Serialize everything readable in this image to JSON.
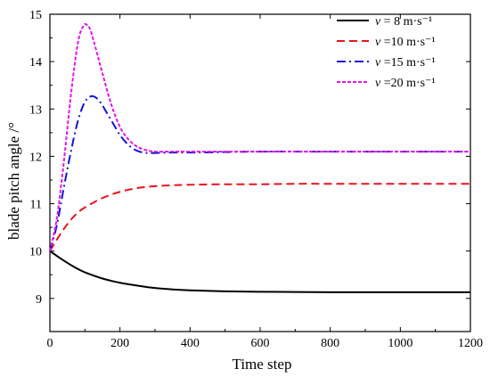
{
  "chart_data": {
    "type": "line",
    "title": "",
    "xlabel": "Time step",
    "ylabel": "blade pitch angle /°",
    "xlim": [
      0,
      1200
    ],
    "ylim": [
      8.3,
      15
    ],
    "xticks": [
      0,
      200,
      400,
      600,
      800,
      1000,
      1200
    ],
    "yticks": [
      9,
      10,
      11,
      12,
      13,
      14,
      15
    ],
    "grid": false,
    "legend_position": "top-right",
    "series": [
      {
        "name": "v = 8 m·s⁻¹",
        "legend_var": "v",
        "legend_rest": " = 8 m·s⁻¹",
        "color": "#000000",
        "dash": "solid",
        "x": [
          0,
          25,
          50,
          75,
          100,
          150,
          200,
          250,
          300,
          350,
          400,
          500,
          600,
          700,
          800,
          900,
          1000,
          1100,
          1200
        ],
        "y": [
          10.0,
          9.87,
          9.75,
          9.64,
          9.55,
          9.42,
          9.33,
          9.27,
          9.22,
          9.19,
          9.17,
          9.15,
          9.14,
          9.135,
          9.13,
          9.13,
          9.13,
          9.13,
          9.13
        ]
      },
      {
        "name": "v =10 m·s⁻¹",
        "legend_var": "v",
        "legend_rest": " =10 m·s⁻¹",
        "color": "#e8141e",
        "dash": "long-dash",
        "x": [
          0,
          25,
          50,
          75,
          100,
          150,
          200,
          250,
          300,
          350,
          400,
          500,
          600,
          700,
          800,
          900,
          1000,
          1100,
          1200
        ],
        "y": [
          10.0,
          10.3,
          10.57,
          10.78,
          10.92,
          11.12,
          11.25,
          11.33,
          11.37,
          11.39,
          11.4,
          11.41,
          11.41,
          11.42,
          11.42,
          11.42,
          11.42,
          11.42,
          11.42
        ]
      },
      {
        "name": "v =15 m·s⁻¹",
        "legend_var": "v",
        "legend_rest": " =15 m·s⁻¹",
        "color": "#1414d2",
        "dash": "dash-dot",
        "x": [
          0,
          20,
          40,
          60,
          80,
          100,
          120,
          140,
          160,
          180,
          200,
          220,
          240,
          260,
          280,
          300,
          350,
          400,
          500,
          600,
          800,
          1000,
          1200
        ],
        "y": [
          10.0,
          10.55,
          11.35,
          12.1,
          12.75,
          13.15,
          13.27,
          13.18,
          12.95,
          12.7,
          12.45,
          12.27,
          12.15,
          12.09,
          12.07,
          12.07,
          12.08,
          12.08,
          12.09,
          12.1,
          12.1,
          12.1,
          12.1
        ]
      },
      {
        "name": "v =20 m·s⁻¹",
        "legend_var": "v",
        "legend_rest": " =20 m·s⁻¹",
        "color": "#e414e8",
        "dash": "short-dash",
        "x": [
          0,
          20,
          40,
          60,
          80,
          95,
          105,
          115,
          130,
          150,
          175,
          200,
          225,
          250,
          275,
          300,
          350,
          400,
          500,
          600,
          800,
          1000,
          1200
        ],
        "y": [
          10.0,
          10.7,
          11.9,
          13.3,
          14.4,
          14.75,
          14.78,
          14.68,
          14.3,
          13.75,
          13.1,
          12.62,
          12.35,
          12.2,
          12.13,
          12.1,
          12.1,
          12.1,
          12.1,
          12.1,
          12.1,
          12.1,
          12.1
        ]
      }
    ]
  }
}
